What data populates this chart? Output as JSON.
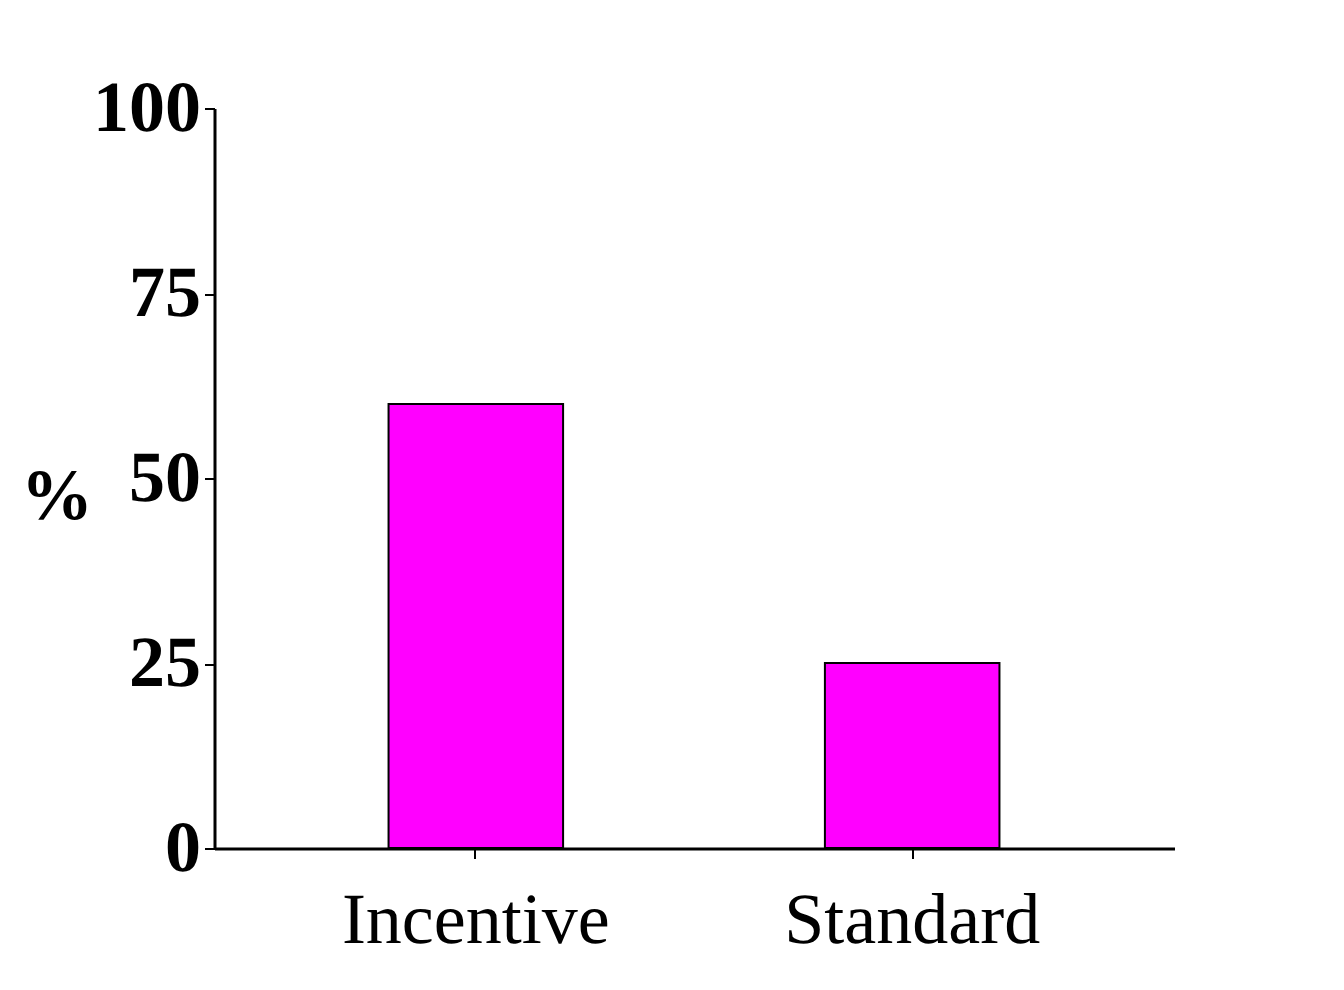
{
  "chart_data": {
    "type": "bar",
    "ylabel": "%",
    "categories": [
      "Incentive",
      "Standard"
    ],
    "values": [
      60,
      25
    ],
    "color": "#ff00ff",
    "ylim": [
      0,
      100
    ],
    "yticks": [
      0,
      25,
      50,
      75,
      100
    ],
    "grid": false
  }
}
